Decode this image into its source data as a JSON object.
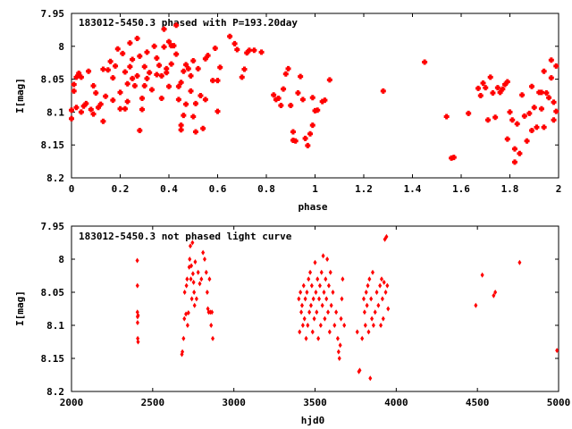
{
  "chart_data": [
    {
      "type": "scatter",
      "title": "183012-5450.3 phased with P=193.20day",
      "xlabel": "phase",
      "ylabel": "I[mag]",
      "xlim": [
        0,
        2
      ],
      "ylim": [
        8.2,
        7.95
      ],
      "y_inverted": true,
      "grid": false,
      "marker_color": "#ff0000",
      "x_ticks": [
        0,
        0.2,
        0.4,
        0.6,
        0.8,
        1,
        1.2,
        1.4,
        1.6,
        1.8,
        2
      ],
      "x_tick_labels": [
        "0",
        "0.2",
        "0.4",
        "0.6",
        "0.8",
        "1",
        "1.2",
        "1.4",
        "1.6",
        "1.8",
        "2"
      ],
      "y_ticks": [
        7.95,
        8,
        8.05,
        8.1,
        8.15,
        8.2
      ],
      "y_tick_labels": [
        "7.95",
        "8",
        "8.05",
        "8.1",
        "8.15",
        "8.2"
      ],
      "points": [
        [
          0.0,
          8.097
        ],
        [
          0.0,
          8.11
        ],
        [
          0.01,
          8.068
        ],
        [
          0.01,
          8.058
        ],
        [
          0.02,
          8.093
        ],
        [
          0.02,
          8.047
        ],
        [
          0.03,
          8.041
        ],
        [
          0.04,
          8.1
        ],
        [
          0.04,
          8.047
        ],
        [
          0.05,
          8.091
        ],
        [
          0.06,
          8.087
        ],
        [
          0.07,
          8.038
        ],
        [
          0.08,
          8.096
        ],
        [
          0.09,
          8.06
        ],
        [
          0.09,
          8.103
        ],
        [
          0.1,
          8.071
        ],
        [
          0.11,
          8.093
        ],
        [
          0.12,
          8.088
        ],
        [
          0.13,
          8.035
        ],
        [
          0.13,
          8.114
        ],
        [
          0.14,
          8.076
        ],
        [
          0.15,
          8.036
        ],
        [
          0.16,
          8.023
        ],
        [
          0.17,
          8.082
        ],
        [
          0.17,
          8.048
        ],
        [
          0.18,
          8.03
        ],
        [
          0.19,
          8.004
        ],
        [
          0.2,
          8.07
        ],
        [
          0.2,
          8.095
        ],
        [
          0.21,
          8.011
        ],
        [
          0.22,
          8.039
        ],
        [
          0.22,
          8.095
        ],
        [
          0.23,
          8.057
        ],
        [
          0.23,
          8.084
        ],
        [
          0.24,
          8.031
        ],
        [
          0.24,
          7.995
        ],
        [
          0.25,
          8.02
        ],
        [
          0.25,
          8.049
        ],
        [
          0.26,
          8.06
        ],
        [
          0.27,
          7.988
        ],
        [
          0.27,
          8.045
        ],
        [
          0.28,
          8.128
        ],
        [
          0.28,
          8.015
        ],
        [
          0.29,
          8.079
        ],
        [
          0.29,
          8.096
        ],
        [
          0.3,
          8.031
        ],
        [
          0.3,
          8.06
        ],
        [
          0.31,
          8.009
        ],
        [
          0.31,
          8.049
        ],
        [
          0.32,
          8.04
        ],
        [
          0.33,
          8.066
        ],
        [
          0.34,
          8.0
        ],
        [
          0.35,
          8.018
        ],
        [
          0.35,
          8.043
        ],
        [
          0.36,
          8.029
        ],
        [
          0.37,
          8.079
        ],
        [
          0.37,
          8.045
        ],
        [
          0.38,
          7.974
        ],
        [
          0.38,
          8.001
        ],
        [
          0.39,
          8.034
        ],
        [
          0.39,
          8.04
        ],
        [
          0.4,
          7.993
        ],
        [
          0.4,
          8.061
        ],
        [
          0.41,
          7.999
        ],
        [
          0.41,
          8.027
        ],
        [
          0.42,
          7.999
        ],
        [
          0.43,
          7.968
        ],
        [
          0.43,
          8.012
        ],
        [
          0.44,
          8.061
        ],
        [
          0.44,
          8.081
        ],
        [
          0.45,
          8.055
        ],
        [
          0.45,
          8.12
        ],
        [
          0.45,
          8.127
        ],
        [
          0.46,
          8.038
        ],
        [
          0.46,
          8.105
        ],
        [
          0.47,
          8.028
        ],
        [
          0.47,
          8.088
        ],
        [
          0.48,
          8.034
        ],
        [
          0.49,
          8.045
        ],
        [
          0.49,
          8.068
        ],
        [
          0.5,
          8.022
        ],
        [
          0.5,
          8.107
        ],
        [
          0.51,
          8.087
        ],
        [
          0.51,
          8.13
        ],
        [
          0.52,
          8.034
        ],
        [
          0.53,
          8.075
        ],
        [
          0.54,
          8.125
        ],
        [
          0.55,
          8.019
        ],
        [
          0.55,
          8.081
        ],
        [
          0.56,
          8.014
        ],
        [
          0.58,
          8.052
        ],
        [
          0.59,
          8.003
        ],
        [
          0.6,
          8.099
        ],
        [
          0.6,
          8.052
        ],
        [
          0.61,
          8.032
        ],
        [
          0.65,
          7.985
        ],
        [
          0.67,
          7.996
        ],
        [
          0.68,
          8.005
        ],
        [
          0.7,
          8.047
        ],
        [
          0.71,
          8.035
        ],
        [
          0.72,
          8.01
        ],
        [
          0.73,
          8.006
        ],
        [
          0.75,
          8.006
        ],
        [
          0.78,
          8.009
        ],
        [
          0.83,
          8.074
        ],
        [
          0.84,
          8.081
        ],
        [
          0.85,
          8.079
        ],
        [
          0.86,
          8.09
        ],
        [
          0.87,
          8.065
        ],
        [
          0.88,
          8.042
        ],
        [
          0.89,
          8.034
        ],
        [
          0.9,
          8.09
        ],
        [
          0.91,
          8.13
        ],
        [
          0.91,
          8.143
        ],
        [
          0.92,
          8.144
        ],
        [
          0.93,
          8.071
        ],
        [
          0.94,
          8.046
        ],
        [
          0.95,
          8.081
        ],
        [
          0.96,
          8.14
        ],
        [
          0.97,
          8.151
        ],
        [
          0.98,
          8.133
        ],
        [
          0.99,
          8.078
        ],
        [
          0.99,
          8.12
        ],
        [
          1.0,
          8.098
        ],
        [
          1.01,
          8.097
        ],
        [
          1.03,
          8.084
        ],
        [
          1.04,
          8.082
        ],
        [
          1.06,
          8.051
        ],
        [
          1.28,
          8.068
        ],
        [
          1.45,
          8.024
        ],
        [
          1.54,
          8.107
        ],
        [
          1.56,
          8.17
        ],
        [
          1.57,
          8.169
        ],
        [
          1.63,
          8.102
        ],
        [
          1.67,
          8.064
        ],
        [
          1.68,
          8.075
        ],
        [
          1.69,
          8.056
        ],
        [
          1.7,
          8.063
        ],
        [
          1.71,
          8.112
        ],
        [
          1.72,
          8.047
        ],
        [
          1.73,
          8.071
        ],
        [
          1.74,
          8.108
        ],
        [
          1.75,
          8.063
        ],
        [
          1.76,
          8.07
        ],
        [
          1.77,
          8.065
        ],
        [
          1.78,
          8.058
        ],
        [
          1.79,
          8.054
        ],
        [
          1.79,
          8.141
        ],
        [
          1.8,
          8.1
        ],
        [
          1.81,
          8.112
        ],
        [
          1.82,
          8.156
        ],
        [
          1.82,
          8.176
        ],
        [
          1.83,
          8.118
        ],
        [
          1.84,
          8.163
        ],
        [
          1.85,
          8.074
        ],
        [
          1.86,
          8.106
        ],
        [
          1.87,
          8.144
        ],
        [
          1.88,
          8.102
        ],
        [
          1.89,
          8.128
        ],
        [
          1.89,
          8.061
        ],
        [
          1.9,
          8.093
        ],
        [
          1.91,
          8.123
        ],
        [
          1.92,
          8.07
        ],
        [
          1.93,
          8.095
        ],
        [
          1.93,
          8.07
        ],
        [
          1.94,
          8.038
        ],
        [
          1.94,
          8.123
        ],
        [
          1.95,
          8.071
        ],
        [
          1.96,
          8.078
        ],
        [
          1.97,
          8.048
        ],
        [
          1.97,
          8.021
        ],
        [
          1.98,
          8.112
        ],
        [
          1.98,
          8.085
        ],
        [
          1.99,
          8.03
        ],
        [
          1.99,
          8.099
        ]
      ]
    },
    {
      "type": "scatter",
      "title": "183012-5450.3 not phased light curve",
      "xlabel": "hjd0",
      "ylabel": "I[mag]",
      "xlim": [
        2000,
        5000
      ],
      "ylim": [
        8.2,
        7.95
      ],
      "y_inverted": true,
      "grid": false,
      "marker_color": "#ff0000",
      "x_ticks": [
        2000,
        2500,
        3000,
        3500,
        4000,
        4500,
        5000
      ],
      "x_tick_labels": [
        "2000",
        "2500",
        "3000",
        "3500",
        "4000",
        "4500",
        "5000"
      ],
      "y_ticks": [
        7.95,
        8,
        8.05,
        8.1,
        8.15,
        8.2
      ],
      "y_tick_labels": [
        "7.95",
        "8",
        "8.05",
        "8.1",
        "8.15",
        "8.2"
      ],
      "points": [
        [
          2405,
          8.002
        ],
        [
          2406,
          8.04
        ],
        [
          2406,
          8.08
        ],
        [
          2407,
          8.087
        ],
        [
          2407,
          8.096
        ],
        [
          2408,
          8.12
        ],
        [
          2410,
          8.125
        ],
        [
          2410,
          8.085
        ],
        [
          2680,
          8.144
        ],
        [
          2683,
          8.14
        ],
        [
          2690,
          8.12
        ],
        [
          2695,
          8.09
        ],
        [
          2697,
          8.05
        ],
        [
          2705,
          8.083
        ],
        [
          2708,
          8.04
        ],
        [
          2712,
          8.03
        ],
        [
          2715,
          8.1
        ],
        [
          2720,
          8.081
        ],
        [
          2725,
          8.012
        ],
        [
          2728,
          8.0
        ],
        [
          2732,
          7.98
        ],
        [
          2735,
          8.03
        ],
        [
          2738,
          8.01
        ],
        [
          2741,
          8.06
        ],
        [
          2745,
          7.975
        ],
        [
          2748,
          8.022
        ],
        [
          2752,
          8.035
        ],
        [
          2755,
          8.05
        ],
        [
          2758,
          8.07
        ],
        [
          2762,
          8.004
        ],
        [
          2770,
          8.06
        ],
        [
          2780,
          8.02
        ],
        [
          2790,
          8.037
        ],
        [
          2800,
          8.03
        ],
        [
          2810,
          7.99
        ],
        [
          2820,
          8.0
        ],
        [
          2830,
          8.02
        ],
        [
          2836,
          8.05
        ],
        [
          2840,
          8.075
        ],
        [
          2845,
          8.08
        ],
        [
          2850,
          8.03
        ],
        [
          2855,
          8.08
        ],
        [
          2860,
          8.1
        ],
        [
          2865,
          8.08
        ],
        [
          2870,
          8.12
        ],
        [
          3400,
          8.06
        ],
        [
          3405,
          8.11
        ],
        [
          3410,
          8.05
        ],
        [
          3415,
          8.08
        ],
        [
          3420,
          8.07
        ],
        [
          3425,
          8.1
        ],
        [
          3430,
          8.04
        ],
        [
          3435,
          8.09
        ],
        [
          3440,
          8.06
        ],
        [
          3445,
          8.12
        ],
        [
          3450,
          8.05
        ],
        [
          3455,
          8.1
        ],
        [
          3460,
          8.03
        ],
        [
          3465,
          8.08
        ],
        [
          3470,
          8.02
        ],
        [
          3475,
          8.07
        ],
        [
          3480,
          8.04
        ],
        [
          3485,
          8.11
        ],
        [
          3490,
          8.06
        ],
        [
          3495,
          8.09
        ],
        [
          3500,
          8.005
        ],
        [
          3505,
          8.05
        ],
        [
          3510,
          8.08
        ],
        [
          3515,
          8.03
        ],
        [
          3520,
          8.12
        ],
        [
          3525,
          8.06
        ],
        [
          3530,
          8.04
        ],
        [
          3535,
          8.1
        ],
        [
          3540,
          8.02
        ],
        [
          3545,
          8.07
        ],
        [
          3550,
          7.995
        ],
        [
          3555,
          8.05
        ],
        [
          3560,
          8.09
        ],
        [
          3565,
          8.03
        ],
        [
          3570,
          8.06
        ],
        [
          3575,
          8.0
        ],
        [
          3580,
          8.08
        ],
        [
          3585,
          8.04
        ],
        [
          3590,
          8.11
        ],
        [
          3595,
          8.02
        ],
        [
          3600,
          8.07
        ],
        [
          3610,
          8.05
        ],
        [
          3620,
          8.1
        ],
        [
          3630,
          8.08
        ],
        [
          3640,
          8.12
        ],
        [
          3645,
          8.14
        ],
        [
          3650,
          8.15
        ],
        [
          3655,
          8.13
        ],
        [
          3660,
          8.09
        ],
        [
          3665,
          8.06
        ],
        [
          3670,
          8.03
        ],
        [
          3680,
          8.1
        ],
        [
          3760,
          8.11
        ],
        [
          3770,
          8.17
        ],
        [
          3775,
          8.168
        ],
        [
          3790,
          8.12
        ],
        [
          3800,
          8.06
        ],
        [
          3805,
          8.08
        ],
        [
          3810,
          8.1
        ],
        [
          3815,
          8.05
        ],
        [
          3820,
          8.07
        ],
        [
          3825,
          8.04
        ],
        [
          3830,
          8.11
        ],
        [
          3835,
          8.03
        ],
        [
          3840,
          8.18
        ],
        [
          3845,
          8.06
        ],
        [
          3850,
          8.09
        ],
        [
          3855,
          8.02
        ],
        [
          3860,
          8.1
        ],
        [
          3870,
          8.08
        ],
        [
          3880,
          8.05
        ],
        [
          3890,
          8.07
        ],
        [
          3900,
          8.04
        ],
        [
          3905,
          8.1
        ],
        [
          3910,
          8.03
        ],
        [
          3915,
          8.06
        ],
        [
          3920,
          8.09
        ],
        [
          3925,
          8.035
        ],
        [
          3930,
          7.97
        ],
        [
          3935,
          8.05
        ],
        [
          3940,
          7.966
        ],
        [
          3945,
          8.04
        ],
        [
          3950,
          8.075
        ],
        [
          4490,
          8.07
        ],
        [
          4530,
          8.024
        ],
        [
          4600,
          8.055
        ],
        [
          4610,
          8.05
        ],
        [
          4760,
          8.005
        ],
        [
          4990,
          8.138
        ]
      ]
    }
  ]
}
